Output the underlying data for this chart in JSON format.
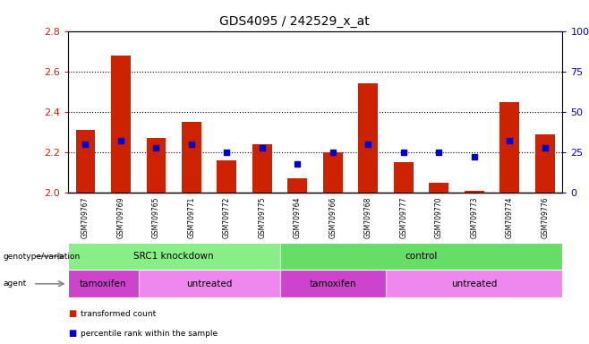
{
  "title": "GDS4095 / 242529_x_at",
  "samples": [
    "GSM709767",
    "GSM709769",
    "GSM709765",
    "GSM709771",
    "GSM709772",
    "GSM709775",
    "GSM709764",
    "GSM709766",
    "GSM709768",
    "GSM709777",
    "GSM709770",
    "GSM709773",
    "GSM709774",
    "GSM709776"
  ],
  "transformed_count": [
    2.31,
    2.68,
    2.27,
    2.35,
    2.16,
    2.24,
    2.07,
    2.2,
    2.54,
    2.15,
    2.05,
    2.01,
    2.45,
    2.29
  ],
  "percentile_rank": [
    30,
    32,
    28,
    30,
    25,
    28,
    18,
    25,
    30,
    25,
    25,
    22,
    32,
    28
  ],
  "ylim_left": [
    2.0,
    2.8
  ],
  "ylim_right": [
    0,
    100
  ],
  "yticks_left": [
    2.0,
    2.2,
    2.4,
    2.6,
    2.8
  ],
  "yticks_right": [
    0,
    25,
    50,
    75,
    100
  ],
  "bar_color": "#cc2200",
  "dot_color": "#0000cc",
  "genotype_groups": [
    {
      "label": "SRC1 knockdown",
      "start": 0,
      "end": 6,
      "color": "#88ee88"
    },
    {
      "label": "control",
      "start": 6,
      "end": 14,
      "color": "#66dd66"
    }
  ],
  "agent_groups": [
    {
      "label": "tamoxifen",
      "start": 0,
      "end": 2,
      "color": "#cc44cc"
    },
    {
      "label": "untreated",
      "start": 2,
      "end": 6,
      "color": "#ee88ee"
    },
    {
      "label": "tamoxifen",
      "start": 6,
      "end": 9,
      "color": "#cc44cc"
    },
    {
      "label": "untreated",
      "start": 9,
      "end": 14,
      "color": "#ee88ee"
    }
  ],
  "ylabel_left_color": "#cc2200",
  "ylabel_right_color": "#0000cc",
  "grid_yticks": [
    2.2,
    2.4,
    2.6
  ]
}
